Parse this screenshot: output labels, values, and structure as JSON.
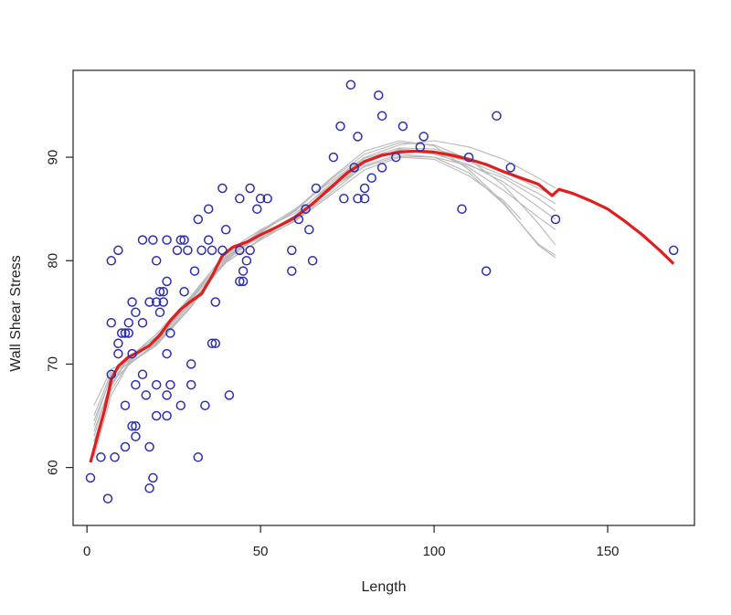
{
  "chart_data": {
    "type": "scatter",
    "title": "",
    "xlabel": "Length",
    "ylabel": "Wall Shear Stress",
    "xlim": [
      -4,
      175
    ],
    "ylim": [
      54.4,
      98.4
    ],
    "xticks": [
      0,
      50,
      100,
      150
    ],
    "yticks": [
      60,
      70,
      80,
      90
    ],
    "grid": false,
    "legend": "none",
    "colors": {
      "points": "#2e2eb0",
      "fit": "#dd1f1f",
      "bootstrap": "#b8b8b8",
      "axes": "#222222"
    },
    "points": [
      [
        1,
        59
      ],
      [
        4,
        61
      ],
      [
        6,
        57
      ],
      [
        7,
        69
      ],
      [
        7,
        74
      ],
      [
        7,
        80
      ],
      [
        8,
        61
      ],
      [
        9,
        71
      ],
      [
        9,
        72
      ],
      [
        9,
        81
      ],
      [
        10,
        73
      ],
      [
        11,
        66
      ],
      [
        11,
        73
      ],
      [
        11,
        62
      ],
      [
        12,
        74
      ],
      [
        12,
        73
      ],
      [
        13,
        76
      ],
      [
        13,
        71
      ],
      [
        13,
        64
      ],
      [
        14,
        75
      ],
      [
        14,
        64
      ],
      [
        14,
        63
      ],
      [
        14,
        68
      ],
      [
        16,
        82
      ],
      [
        16,
        74
      ],
      [
        16,
        69
      ],
      [
        17,
        67
      ],
      [
        18,
        76
      ],
      [
        18,
        62
      ],
      [
        18,
        58
      ],
      [
        19,
        59
      ],
      [
        19,
        82
      ],
      [
        20,
        80
      ],
      [
        20,
        76
      ],
      [
        20,
        68
      ],
      [
        20,
        65
      ],
      [
        21,
        75
      ],
      [
        21,
        77
      ],
      [
        22,
        76
      ],
      [
        22,
        77
      ],
      [
        23,
        82
      ],
      [
        23,
        78
      ],
      [
        23,
        71
      ],
      [
        23,
        67
      ],
      [
        23,
        65
      ],
      [
        24,
        73
      ],
      [
        24,
        68
      ],
      [
        26,
        81
      ],
      [
        27,
        82
      ],
      [
        27,
        66
      ],
      [
        28,
        82
      ],
      [
        28,
        77
      ],
      [
        29,
        81
      ],
      [
        30,
        70
      ],
      [
        30,
        68
      ],
      [
        31,
        79
      ],
      [
        32,
        84
      ],
      [
        32,
        61
      ],
      [
        33,
        81
      ],
      [
        34,
        66
      ],
      [
        35,
        85
      ],
      [
        35,
        82
      ],
      [
        36,
        81
      ],
      [
        36,
        72
      ],
      [
        37,
        72
      ],
      [
        37,
        76
      ],
      [
        39,
        87
      ],
      [
        39,
        81
      ],
      [
        40,
        83
      ],
      [
        41,
        67
      ],
      [
        44,
        86
      ],
      [
        44,
        81
      ],
      [
        44,
        78
      ],
      [
        45,
        79
      ],
      [
        45,
        78
      ],
      [
        46,
        80
      ],
      [
        47,
        87
      ],
      [
        47,
        81
      ],
      [
        49,
        85
      ],
      [
        50,
        86
      ],
      [
        52,
        86
      ],
      [
        59,
        81
      ],
      [
        59,
        79
      ],
      [
        61,
        84
      ],
      [
        63,
        85
      ],
      [
        64,
        83
      ],
      [
        65,
        80
      ],
      [
        66,
        87
      ],
      [
        71,
        90
      ],
      [
        73,
        93
      ],
      [
        74,
        86
      ],
      [
        76,
        97
      ],
      [
        77,
        89
      ],
      [
        78,
        92
      ],
      [
        78,
        86
      ],
      [
        80,
        86
      ],
      [
        80,
        87
      ],
      [
        82,
        88
      ],
      [
        84,
        96
      ],
      [
        85,
        94
      ],
      [
        85,
        89
      ],
      [
        89,
        90
      ],
      [
        91,
        93
      ],
      [
        96,
        91
      ],
      [
        97,
        92
      ],
      [
        108,
        85
      ],
      [
        110,
        90
      ],
      [
        115,
        79
      ],
      [
        118,
        94
      ],
      [
        122,
        89
      ],
      [
        135,
        84
      ],
      [
        169,
        81
      ]
    ],
    "fit": [
      [
        1,
        60.5
      ],
      [
        3,
        63
      ],
      [
        5,
        65.5
      ],
      [
        7,
        68.5
      ],
      [
        9,
        69.8
      ],
      [
        12,
        70.7
      ],
      [
        15,
        71.2
      ],
      [
        18,
        71.8
      ],
      [
        21,
        72.8
      ],
      [
        24,
        74.2
      ],
      [
        27,
        75.3
      ],
      [
        30,
        76.1
      ],
      [
        33,
        76.8
      ],
      [
        36,
        78.5
      ],
      [
        39,
        80.5
      ],
      [
        42,
        81.3
      ],
      [
        46,
        81.8
      ],
      [
        50,
        82.5
      ],
      [
        55,
        83.3
      ],
      [
        60,
        84.2
      ],
      [
        65,
        85.5
      ],
      [
        70,
        87
      ],
      [
        75,
        88.5
      ],
      [
        80,
        89.6
      ],
      [
        85,
        90.2
      ],
      [
        90,
        90.5
      ],
      [
        95,
        90.6
      ],
      [
        100,
        90.5
      ],
      [
        105,
        90.2
      ],
      [
        110,
        89.8
      ],
      [
        115,
        89.3
      ],
      [
        120,
        88.6
      ],
      [
        125,
        88
      ],
      [
        130,
        87.4
      ],
      [
        134,
        86.3
      ],
      [
        136,
        86.9
      ],
      [
        140,
        86.5
      ],
      [
        145,
        85.8
      ],
      [
        150,
        85
      ],
      [
        155,
        83.8
      ],
      [
        160,
        82.5
      ],
      [
        165,
        81
      ],
      [
        169,
        79.7
      ]
    ],
    "bootstrap": [
      [
        [
          2,
          61
        ],
        [
          7,
          67
        ],
        [
          12,
          70
        ],
        [
          20,
          72
        ],
        [
          30,
          75.8
        ],
        [
          40,
          80
        ],
        [
          50,
          82.5
        ],
        [
          60,
          84.3
        ],
        [
          70,
          87
        ],
        [
          80,
          89.5
        ],
        [
          90,
          90.6
        ],
        [
          100,
          90.4
        ],
        [
          110,
          89.6
        ],
        [
          120,
          88.2
        ],
        [
          130,
          86.5
        ],
        [
          135,
          85.5
        ]
      ],
      [
        [
          2,
          63
        ],
        [
          7,
          68.5
        ],
        [
          12,
          70.2
        ],
        [
          20,
          72.4
        ],
        [
          30,
          76.3
        ],
        [
          40,
          80.4
        ],
        [
          50,
          82.4
        ],
        [
          60,
          84
        ],
        [
          70,
          86.8
        ],
        [
          80,
          89.4
        ],
        [
          90,
          90.8
        ],
        [
          100,
          90.5
        ],
        [
          110,
          89
        ],
        [
          120,
          86.8
        ],
        [
          130,
          84.2
        ],
        [
          135,
          83
        ]
      ],
      [
        [
          2,
          64
        ],
        [
          7,
          69
        ],
        [
          12,
          70.4
        ],
        [
          20,
          72.2
        ],
        [
          30,
          76
        ],
        [
          40,
          79.8
        ],
        [
          50,
          82.1
        ],
        [
          60,
          84.4
        ],
        [
          70,
          87.4
        ],
        [
          80,
          89.9
        ],
        [
          90,
          90.9
        ],
        [
          100,
          90.8
        ],
        [
          110,
          89.9
        ],
        [
          120,
          88.6
        ],
        [
          130,
          87
        ],
        [
          135,
          86.2
        ]
      ],
      [
        [
          2,
          65
        ],
        [
          7,
          69.2
        ],
        [
          12,
          70
        ],
        [
          20,
          71.8
        ],
        [
          30,
          75.5
        ],
        [
          40,
          80.2
        ],
        [
          50,
          82.8
        ],
        [
          60,
          84.8
        ],
        [
          70,
          87.8
        ],
        [
          80,
          90.3
        ],
        [
          90,
          91.4
        ],
        [
          100,
          91.2
        ],
        [
          110,
          89.8
        ],
        [
          120,
          87.3
        ],
        [
          130,
          83.6
        ],
        [
          135,
          81.5
        ]
      ],
      [
        [
          2,
          62
        ],
        [
          7,
          68
        ],
        [
          12,
          70.6
        ],
        [
          20,
          72.9
        ],
        [
          30,
          76.6
        ],
        [
          40,
          80.7
        ],
        [
          50,
          82.6
        ],
        [
          60,
          84.2
        ],
        [
          70,
          86.9
        ],
        [
          80,
          89.1
        ],
        [
          90,
          90.1
        ],
        [
          100,
          90
        ],
        [
          110,
          89.2
        ],
        [
          120,
          88
        ],
        [
          130,
          86
        ],
        [
          135,
          84.8
        ]
      ],
      [
        [
          2,
          66
        ],
        [
          7,
          69.5
        ],
        [
          12,
          70.3
        ],
        [
          20,
          72.5
        ],
        [
          30,
          76.2
        ],
        [
          40,
          80.1
        ],
        [
          50,
          82.7
        ],
        [
          60,
          84.9
        ],
        [
          70,
          87.9
        ],
        [
          80,
          90.6
        ],
        [
          90,
          91.6
        ],
        [
          100,
          91.1
        ],
        [
          110,
          88.8
        ],
        [
          120,
          85.6
        ],
        [
          130,
          81.5
        ],
        [
          135,
          80.3
        ]
      ],
      [
        [
          2,
          61.5
        ],
        [
          7,
          67.5
        ],
        [
          12,
          70.1
        ],
        [
          20,
          71.9
        ],
        [
          30,
          75.6
        ],
        [
          40,
          80.6
        ],
        [
          50,
          82.2
        ],
        [
          60,
          83.8
        ],
        [
          70,
          86.3
        ],
        [
          80,
          88.8
        ],
        [
          90,
          90
        ],
        [
          100,
          89.8
        ],
        [
          110,
          88.2
        ],
        [
          120,
          85.8
        ],
        [
          125,
          84
        ]
      ],
      [
        [
          2,
          64.5
        ],
        [
          7,
          68.8
        ],
        [
          12,
          70.5
        ],
        [
          20,
          72.7
        ],
        [
          30,
          76.5
        ],
        [
          40,
          80.3
        ],
        [
          50,
          82.9
        ],
        [
          60,
          85
        ],
        [
          70,
          87.6
        ],
        [
          80,
          90
        ],
        [
          90,
          91.2
        ],
        [
          100,
          91.6
        ],
        [
          110,
          91
        ],
        [
          120,
          89.8
        ],
        [
          130,
          88
        ],
        [
          135,
          87
        ]
      ],
      [
        [
          2,
          62.5
        ],
        [
          7,
          67.8
        ],
        [
          12,
          70.7
        ],
        [
          20,
          72.6
        ],
        [
          30,
          75.9
        ],
        [
          40,
          79.9
        ],
        [
          50,
          82
        ],
        [
          60,
          83.9
        ],
        [
          70,
          86.5
        ],
        [
          80,
          89.2
        ],
        [
          90,
          90.3
        ],
        [
          100,
          90
        ],
        [
          110,
          88.5
        ],
        [
          120,
          85.5
        ],
        [
          130,
          81.6
        ],
        [
          135,
          80.5
        ]
      ],
      [
        [
          2,
          63.5
        ],
        [
          7,
          68.2
        ],
        [
          12,
          69.9
        ],
        [
          20,
          72.1
        ],
        [
          30,
          76.4
        ],
        [
          40,
          80.8
        ],
        [
          50,
          83
        ],
        [
          60,
          84.6
        ],
        [
          70,
          87.2
        ],
        [
          80,
          89.7
        ],
        [
          90,
          90.7
        ],
        [
          100,
          90.3
        ],
        [
          110,
          89.3
        ],
        [
          120,
          87.6
        ],
        [
          130,
          85.2
        ],
        [
          135,
          84
        ]
      ]
    ]
  }
}
